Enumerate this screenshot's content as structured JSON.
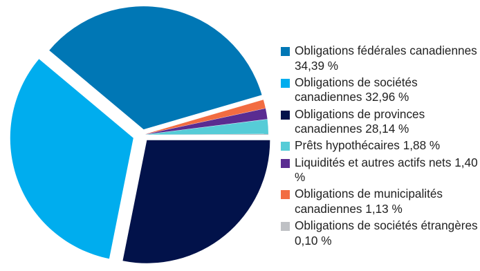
{
  "chart_data": {
    "type": "pie",
    "title": "",
    "slices": [
      {
        "label": "Obligations fédérales canadiennes",
        "value": 34.39,
        "value_text": "34,39 %",
        "color": "#0077b5"
      },
      {
        "label": "Obligations de sociétés canadiennes",
        "value": 32.96,
        "value_text": "32,96 %",
        "color": "#00adee"
      },
      {
        "label": "Obligations de provinces canadiennes",
        "value": 28.14,
        "value_text": "28,14 %",
        "color": "#02124a"
      },
      {
        "label": "Prêts hypothécaires",
        "value": 1.88,
        "value_text": "1,88 %",
        "color": "#56ccd7"
      },
      {
        "label": "Liquidités et autres actifs nets",
        "value": 1.4,
        "value_text": "1,40 %",
        "color": "#5a2c91"
      },
      {
        "label": "Obligations de municipalités canadiennes",
        "value": 1.13,
        "value_text": "1,13 %",
        "color": "#f26c41"
      },
      {
        "label": "Obligations de sociétés étrangères",
        "value": 0.1,
        "value_text": "0,10 %",
        "color": "#bfc1c5"
      }
    ],
    "legend_position": "right"
  }
}
